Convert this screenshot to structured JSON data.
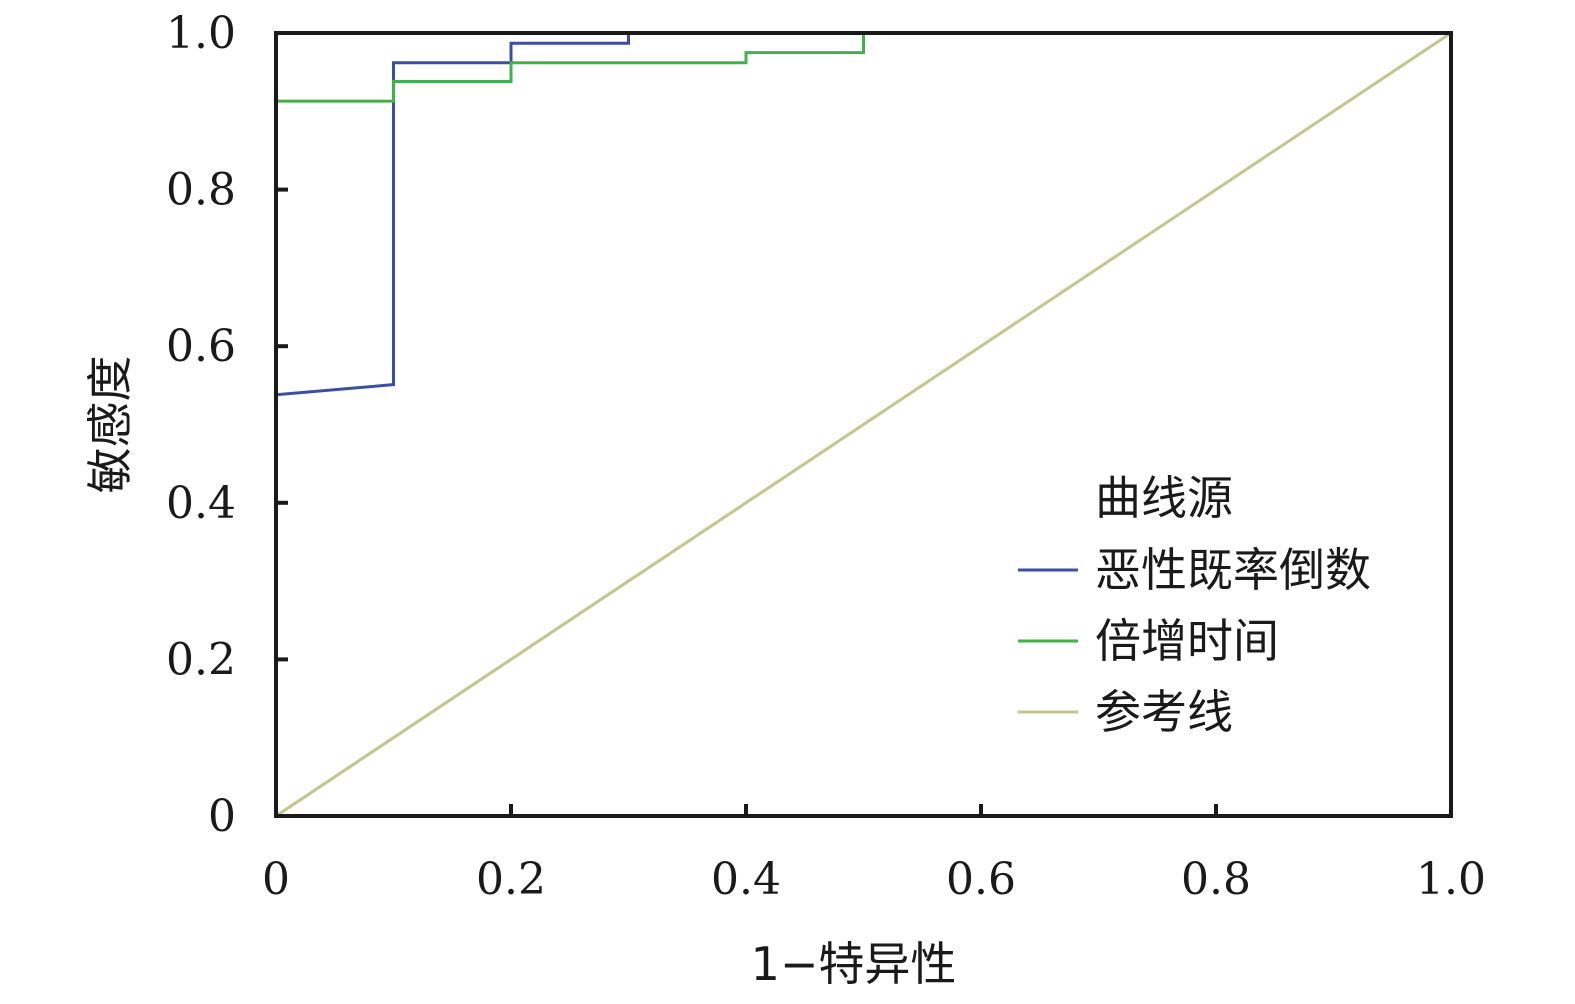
{
  "chart_data": {
    "type": "line",
    "title": "",
    "xlabel": "1−特异性",
    "ylabel": "敏感度",
    "xlim": [
      0,
      1
    ],
    "ylim": [
      0,
      1
    ],
    "x_ticks": [
      0,
      0.2,
      0.4,
      0.6,
      0.8,
      1.0
    ],
    "x_tick_labels": [
      "0",
      "0.2",
      "0.4",
      "0.6",
      "0.8",
      "1.0"
    ],
    "y_ticks": [
      0,
      0.2,
      0.4,
      0.6,
      0.8,
      1.0
    ],
    "y_tick_labels": [
      "0",
      "0.2",
      "0.4",
      "0.6",
      "0.8",
      "1.0"
    ],
    "grid": false,
    "legend": {
      "title": "曲线源",
      "position": "lower-right"
    },
    "series": [
      {
        "name": "恶性既率倒数",
        "color": "#3b4fa0",
        "points": [
          [
            0,
            0
          ],
          [
            0,
            0.538
          ],
          [
            0.1,
            0.551
          ],
          [
            0.1,
            0.962
          ],
          [
            0.2,
            0.962
          ],
          [
            0.2,
            0.987
          ],
          [
            0.3,
            0.987
          ],
          [
            0.3,
            1.0
          ],
          [
            1.0,
            1.0
          ]
        ]
      },
      {
        "name": "倍增时间",
        "color": "#44b04c",
        "points": [
          [
            0,
            0
          ],
          [
            0,
            0.913
          ],
          [
            0.1,
            0.913
          ],
          [
            0.1,
            0.938
          ],
          [
            0.2,
            0.938
          ],
          [
            0.2,
            0.962
          ],
          [
            0.4,
            0.962
          ],
          [
            0.4,
            0.975
          ],
          [
            0.5,
            0.975
          ],
          [
            0.5,
            1.0
          ],
          [
            1.0,
            1.0
          ]
        ]
      },
      {
        "name": "参考线",
        "color": "#c4c48e",
        "points": [
          [
            0,
            0
          ],
          [
            1,
            1
          ]
        ]
      }
    ]
  }
}
